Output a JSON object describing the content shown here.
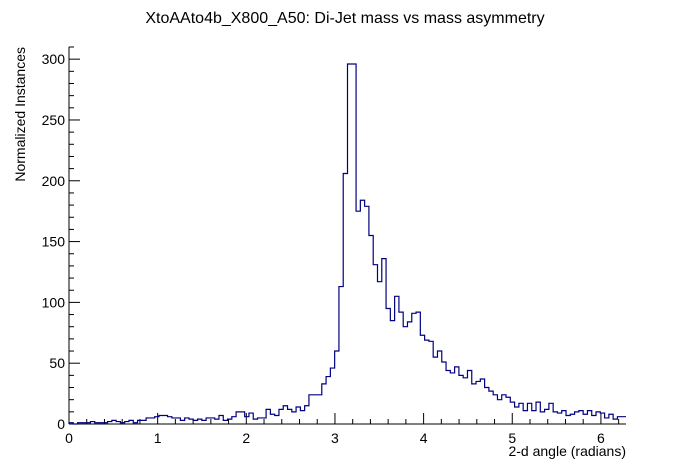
{
  "chart_data": {
    "type": "histogram",
    "title": "XtoAAto4b_X800_A50: Di-Jet mass vs mass asymmetry",
    "xlabel": "2-d angle (radians)",
    "ylabel": "Normalized Instances",
    "xlim": [
      0,
      6.283
    ],
    "ylim": [
      0,
      310
    ],
    "x_ticks": [
      0,
      1,
      2,
      3,
      4,
      5,
      6
    ],
    "y_ticks": [
      0,
      50,
      100,
      150,
      200,
      250,
      300
    ],
    "grid": false,
    "line_color": "#000080",
    "bin_width": 0.0628,
    "values": [
      1,
      0,
      1,
      1,
      1,
      2,
      1,
      1,
      1,
      2,
      3,
      2,
      1,
      2,
      3,
      1,
      3,
      3,
      5,
      5,
      6,
      7,
      7,
      6,
      5,
      5,
      3,
      5,
      4,
      3,
      4,
      3,
      5,
      5,
      4,
      7,
      3,
      4,
      6,
      10,
      10,
      6,
      9,
      4,
      5,
      5,
      12,
      8,
      7,
      12,
      15,
      12,
      10,
      14,
      11,
      15,
      24,
      24,
      24,
      33,
      39,
      46,
      60,
      113,
      206,
      296,
      296,
      175,
      184,
      179,
      155,
      131,
      117,
      136,
      95,
      85,
      105,
      92,
      80,
      84,
      91,
      92,
      73,
      69,
      68,
      55,
      60,
      51,
      44,
      42,
      47,
      40,
      38,
      44,
      33,
      35,
      37,
      30,
      27,
      24,
      20,
      24,
      22,
      18,
      14,
      17,
      11,
      17,
      11,
      18,
      10,
      12,
      17,
      10,
      9,
      11,
      7,
      8,
      10,
      11,
      8,
      11,
      7,
      10,
      9,
      5,
      8,
      4,
      6,
      6
    ]
  }
}
